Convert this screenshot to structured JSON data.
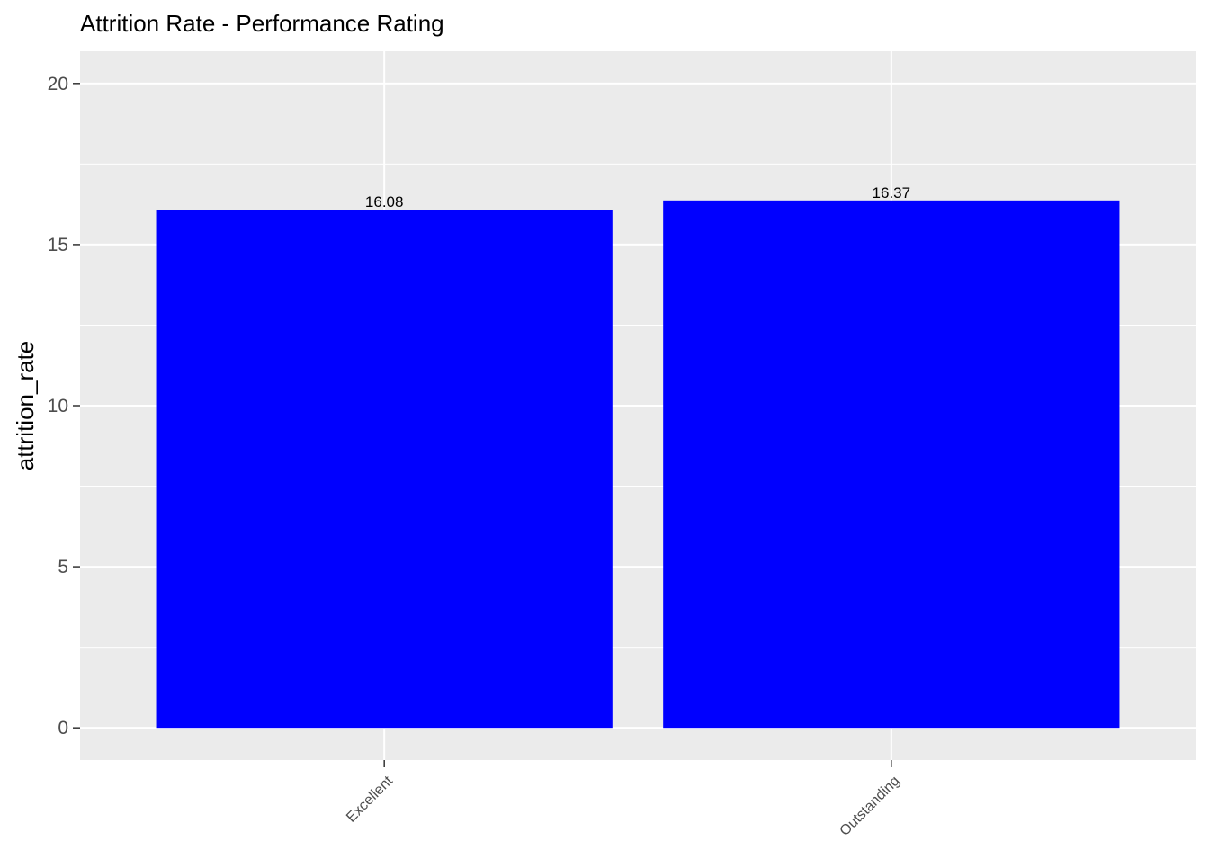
{
  "chart_data": {
    "type": "bar",
    "title": "Attrition Rate - Performance Rating",
    "xlabel": "",
    "ylabel": "attrition_rate",
    "categories": [
      "Excellent",
      "Outstanding"
    ],
    "values": [
      16.08,
      16.37
    ],
    "data_labels": [
      "16.08",
      "16.37"
    ],
    "y_ticks": [
      0,
      5,
      10,
      15,
      20
    ],
    "y_tick_labels": [
      "0",
      "5",
      "10",
      "15",
      "20"
    ],
    "ylim": [
      -1,
      21
    ],
    "bar_color": "#0000ff",
    "panel_background": "#ebebeb",
    "grid_color": "#ffffff",
    "grid": true,
    "x_tick_label_rotation": "45-degree",
    "legend": "none"
  }
}
